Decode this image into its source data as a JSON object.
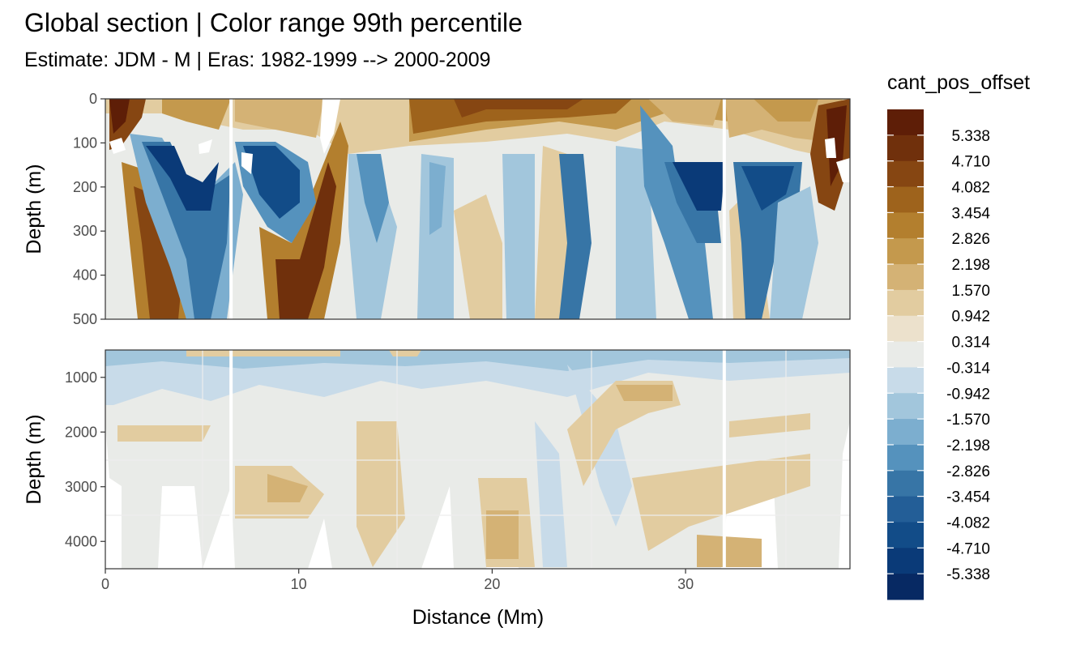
{
  "title": "Global section | Color range 99th percentile",
  "subtitle": "Estimate: JDM - M | Eras: 1982-1999 --> 2000-2009",
  "chart_data": {
    "type": "heatmap",
    "xlabel": "Distance (Mm)",
    "ylabel": "Depth (m)",
    "xlim": [
      0,
      38.5
    ],
    "x_ticks": [
      "0",
      "10",
      "20",
      "30"
    ],
    "x_tick_values": [
      0,
      10,
      20,
      30
    ],
    "panels": [
      {
        "name": "upper",
        "ylim": [
          500,
          0
        ],
        "y_ticks": [
          "0",
          "100",
          "200",
          "300",
          "400",
          "500"
        ],
        "y_tick_values": [
          0,
          100,
          200,
          300,
          400,
          500
        ]
      },
      {
        "name": "lower",
        "ylim": [
          4500,
          500
        ],
        "y_ticks": [
          "1000",
          "2000",
          "3000",
          "4000"
        ],
        "y_tick_values": [
          1000,
          2000,
          3000,
          4000
        ]
      }
    ],
    "gaps_x": [
      6.5,
      32
    ],
    "legend": {
      "title": "cant_pos_offset",
      "position": "right",
      "labels": [
        "5.338",
        "4.710",
        "4.082",
        "3.454",
        "2.826",
        "2.198",
        "1.570",
        "0.942",
        "0.314",
        "-0.314",
        "-0.942",
        "-1.570",
        "-2.198",
        "-2.826",
        "-3.454",
        "-4.082",
        "-4.710",
        "-5.338"
      ],
      "colors": [
        "#5e1e07",
        "#70300c",
        "#864612",
        "#9e631c",
        "#b37f2e",
        "#c4994d",
        "#d4b275",
        "#e2cca0",
        "#ece1cc",
        "#e9ebe8",
        "#c8dbe9",
        "#a2c6dc",
        "#7caecf",
        "#5592bd",
        "#3775a6",
        "#235e97",
        "#124c88",
        "#0a3a78",
        "#072963"
      ]
    }
  }
}
